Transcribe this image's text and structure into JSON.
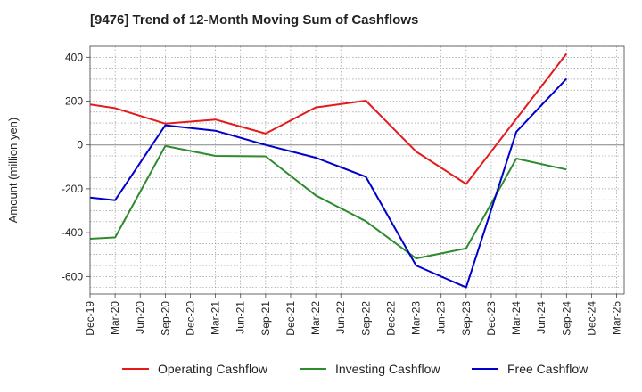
{
  "chart_data": {
    "type": "line",
    "title": "[9476]  Trend of 12-Month Moving Sum of Cashflows",
    "xlabel": "",
    "ylabel": "Amount (million yen)",
    "categories": [
      "Dec-19",
      "Mar-20",
      "Jun-20",
      "Sep-20",
      "Dec-20",
      "Mar-21",
      "Jun-21",
      "Sep-21",
      "Dec-21",
      "Mar-22",
      "Jun-22",
      "Sep-22",
      "Dec-22",
      "Mar-23",
      "Jun-23",
      "Sep-23",
      "Dec-23",
      "Mar-24",
      "Jun-24",
      "Sep-24",
      "Dec-24",
      "Mar-25"
    ],
    "ylim": [
      -680,
      450
    ],
    "yticks": [
      400,
      200,
      0,
      -200,
      -400,
      -600
    ],
    "ytick_labels": [
      "400",
      "200",
      "0",
      "-200",
      "-400",
      "-600"
    ],
    "grid": true,
    "legend_position": "bottom",
    "series": [
      {
        "name": "Operating Cashflow",
        "color": "#e41a1c",
        "values": [
          185,
          168,
          null,
          97,
          null,
          116,
          null,
          52,
          null,
          171,
          null,
          202,
          null,
          -30,
          null,
          -178,
          null,
          null,
          null,
          416,
          null,
          null
        ]
      },
      {
        "name": "Investing Cashflow",
        "color": "#2e8b2e",
        "values": [
          -428,
          -422,
          null,
          -5,
          null,
          -50,
          null,
          -52,
          null,
          -230,
          null,
          -348,
          null,
          -518,
          null,
          -472,
          null,
          -62,
          null,
          -112,
          null,
          null
        ]
      },
      {
        "name": "Free Cashflow",
        "color": "#0000cc",
        "values": [
          -240,
          -252,
          null,
          90,
          null,
          65,
          null,
          0,
          null,
          -58,
          null,
          -145,
          null,
          -550,
          null,
          -650,
          null,
          60,
          null,
          302,
          null,
          null
        ]
      }
    ]
  }
}
